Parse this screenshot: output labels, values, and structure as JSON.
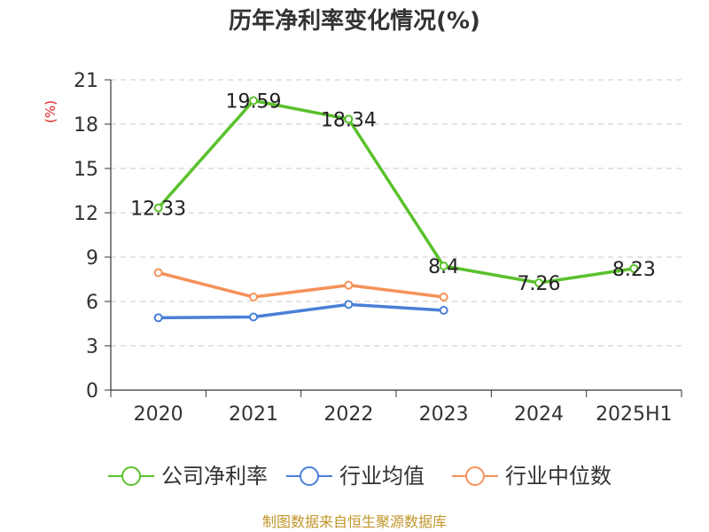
{
  "chart_data": {
    "type": "line",
    "title": "历年净利率变化情况(%)",
    "ylabel": "(%)",
    "xlabel": "",
    "categories": [
      "2020",
      "2021",
      "2022",
      "2023",
      "2024",
      "2025H1"
    ],
    "y_ticks": [
      "0",
      "3",
      "6",
      "9",
      "12",
      "15",
      "18",
      "21"
    ],
    "ylim": [
      0,
      21
    ],
    "grid": true,
    "legend_position": "bottom",
    "series": [
      {
        "name": "公司净利率",
        "color": "#5ac12c",
        "values": [
          12.33,
          19.59,
          18.34,
          8.4,
          7.26,
          8.23
        ],
        "labels": [
          "12.33",
          "19.59",
          "18.34",
          "8.4",
          "7.26",
          "8.23"
        ]
      },
      {
        "name": "行业均值",
        "color": "#4a7fd8",
        "values": [
          4.9,
          4.95,
          5.8,
          5.4,
          null,
          null
        ]
      },
      {
        "name": "行业中位数",
        "color": "#f5925a",
        "values": [
          7.95,
          6.3,
          7.1,
          6.3,
          null,
          null
        ]
      }
    ]
  },
  "footer": "制图数据来自恒生聚源数据库"
}
